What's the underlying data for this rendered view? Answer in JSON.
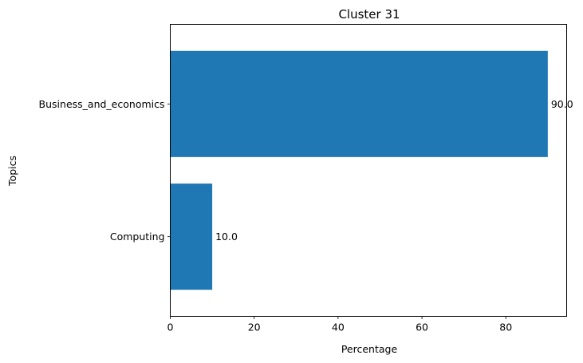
{
  "chart_data": {
    "type": "bar",
    "orientation": "horizontal",
    "title": "Cluster 31",
    "xlabel": "Percentage",
    "ylabel": "Topics",
    "categories": [
      "Business_and_economics",
      "Computing"
    ],
    "values": [
      90.0,
      10.0
    ],
    "data_labels": [
      "90.0",
      "10.0"
    ],
    "xlim": [
      0,
      94.5
    ],
    "xticks": [
      0,
      20,
      40,
      60,
      80
    ],
    "xtick_labels": [
      "0",
      "20",
      "40",
      "60",
      "80"
    ],
    "grid": false,
    "bar_color": "#1f77b4"
  }
}
